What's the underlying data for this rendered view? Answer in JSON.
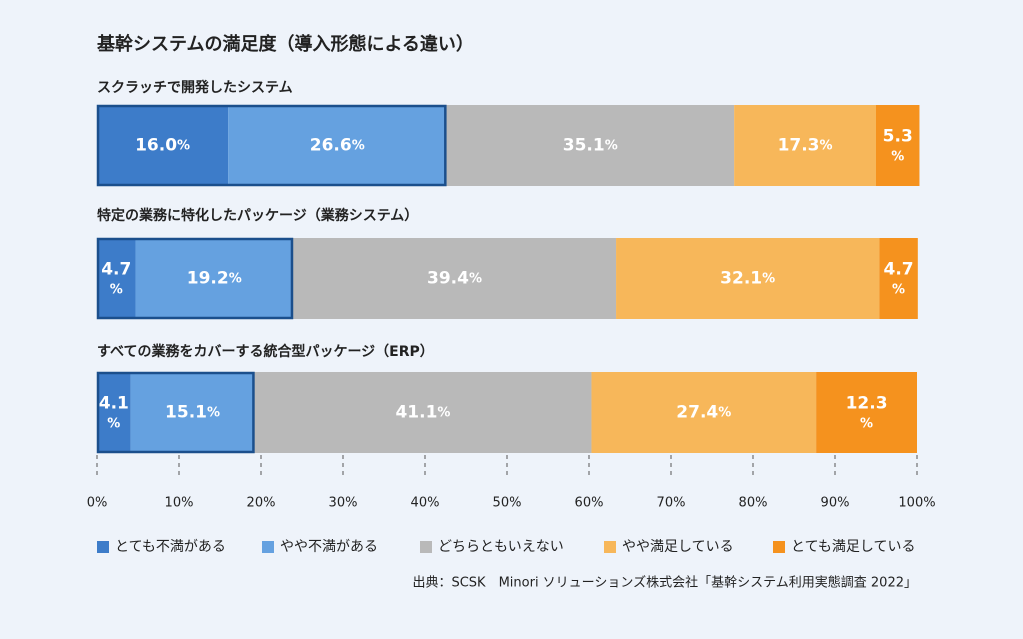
{
  "chart_data": {
    "type": "stacked-bar-horizontal",
    "title": "基幹システムの満足度（導入形態による違い）",
    "categories": [
      "スクラッチで開発したシステム",
      "特定の業務に特化したパッケージ（業務システム）",
      "すべての業務をカバーする統合型パッケージ（ERP）"
    ],
    "series": [
      {
        "name": "とても不満がある",
        "color": "#3d7cc9",
        "values": [
          16.0,
          4.7,
          4.1
        ],
        "value_labels": [
          "16.0%",
          "4.7%",
          "4.1%"
        ]
      },
      {
        "name": "やや不満がある",
        "color": "#65a1e0",
        "values": [
          26.6,
          19.2,
          15.1
        ],
        "value_labels": [
          "26.6%",
          "19.2%",
          "15.1%"
        ]
      },
      {
        "name": "どちらともいえない",
        "color": "#b9b9b9",
        "values": [
          35.1,
          39.4,
          41.1
        ],
        "value_labels": [
          "35.1%",
          "39.4%",
          "41.1%"
        ]
      },
      {
        "name": "やや満足している",
        "color": "#f7b75a",
        "values": [
          17.3,
          32.1,
          27.4
        ],
        "value_labels": [
          "17.3%",
          "32.1%",
          "27.4%"
        ]
      },
      {
        "name": "とても満足している",
        "color": "#f5921e",
        "values": [
          5.3,
          4.7,
          12.3
        ],
        "value_labels": [
          "5.3%",
          "4.7%",
          "12.3%"
        ]
      }
    ],
    "xlim": [
      0,
      100
    ],
    "xticks": [
      {
        "value": 0,
        "label": "0%"
      },
      {
        "value": 10,
        "label": "10%"
      },
      {
        "value": 20,
        "label": "20%"
      },
      {
        "value": 30,
        "label": "30%"
      },
      {
        "value": 40,
        "label": "40%"
      },
      {
        "value": 50,
        "label": "50%"
      },
      {
        "value": 60,
        "label": "60%"
      },
      {
        "value": 70,
        "label": "70%"
      },
      {
        "value": 80,
        "label": "80%"
      },
      {
        "value": 90,
        "label": "90%"
      },
      {
        "value": 100,
        "label": "100%"
      }
    ],
    "legend": "bottom",
    "source": "出典：SCSK　Minori ソリューションズ株式会社「基幹システム利用実態調査 2022」"
  }
}
